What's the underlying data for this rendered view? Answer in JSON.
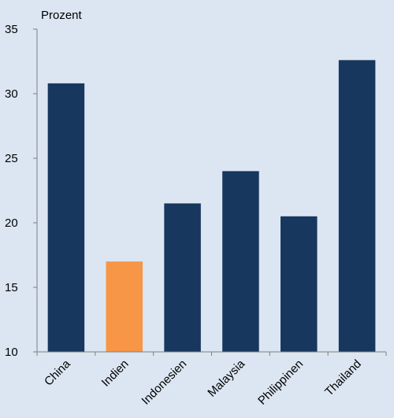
{
  "chart_data": {
    "type": "bar",
    "y_label": "Prozent",
    "categories": [
      "China",
      "Indien",
      "Indonesien",
      "Malaysia",
      "Philippinen",
      "Thailand"
    ],
    "values": [
      30.8,
      17.0,
      21.5,
      24.0,
      20.5,
      32.6
    ],
    "colors": [
      "#17375e",
      "#f79646",
      "#17375e",
      "#17375e",
      "#17375e",
      "#17375e"
    ],
    "ylim": [
      10,
      35
    ],
    "yticks": [
      10,
      15,
      20,
      25,
      30,
      35
    ],
    "grid": false
  }
}
